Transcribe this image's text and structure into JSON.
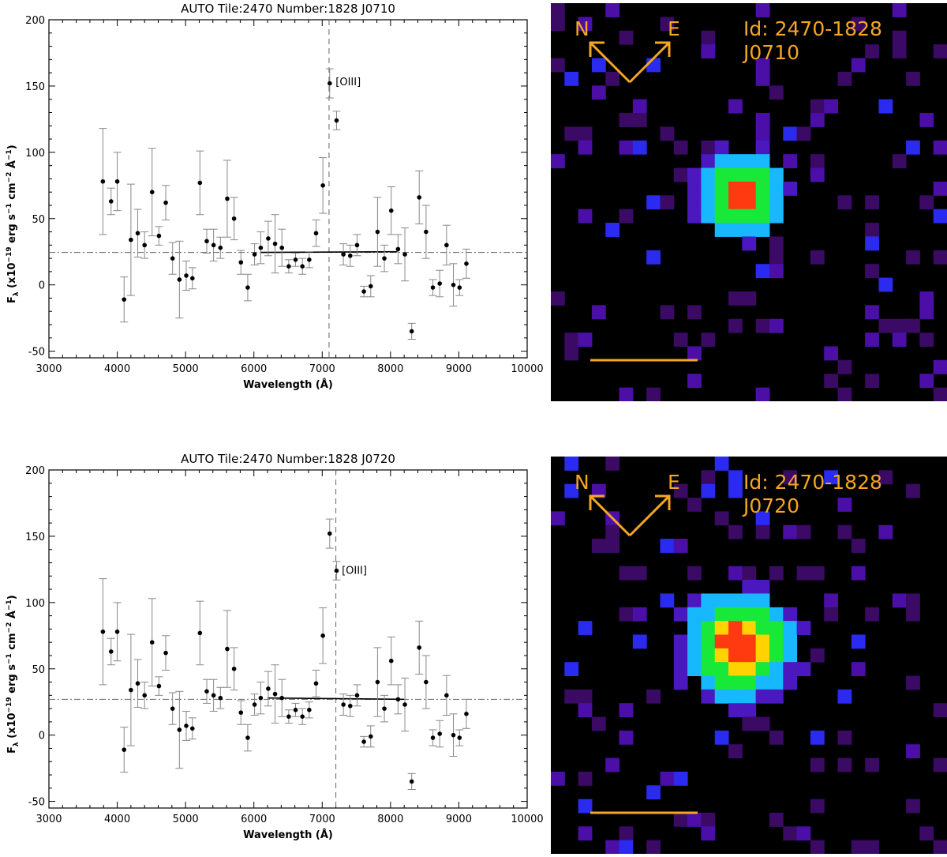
{
  "chart_data": [
    {
      "type": "scatter",
      "title": "AUTO Tile:2470 Number:1828 J0710",
      "xlabel": "Wavelength (Å)",
      "ylabel_main": "F",
      "ylabel_sub": "λ",
      "ylabel_rest": " (x10",
      "ylabel_exp1": "−19",
      "ylabel_mid": " erg s",
      "ylabel_exp2": "−1",
      "ylabel_mid2": " cm",
      "ylabel_exp3": "−2",
      "ylabel_mid3": " Å",
      "ylabel_exp4": "−1",
      "ylabel_end": ")",
      "xlim": [
        3000,
        10000
      ],
      "ylim": [
        -55,
        200
      ],
      "xticks": [
        3000,
        4000,
        5000,
        6000,
        7000,
        8000,
        9000,
        10000
      ],
      "yticks": [
        -50,
        0,
        50,
        100,
        150,
        200
      ],
      "continuum_level": 24.5,
      "vline_x": 7100,
      "fit_line": {
        "x": [
          6100,
          8100
        ],
        "y": [
          24.5,
          25
        ]
      },
      "annotation": {
        "text": "[OIII]",
        "x": 7150,
        "y": 153
      },
      "points": [
        {
          "x": 3790,
          "y": 78,
          "err": 40
        },
        {
          "x": 3910,
          "y": 63,
          "err": 10
        },
        {
          "x": 4000,
          "y": 78,
          "err": 22
        },
        {
          "x": 4100,
          "y": -11,
          "err": 17
        },
        {
          "x": 4200,
          "y": 34,
          "err": 42
        },
        {
          "x": 4300,
          "y": 39,
          "err": 18
        },
        {
          "x": 4400,
          "y": 30,
          "err": 10
        },
        {
          "x": 4510,
          "y": 70,
          "err": 33
        },
        {
          "x": 4610,
          "y": 37,
          "err": 7
        },
        {
          "x": 4710,
          "y": 62,
          "err": 13
        },
        {
          "x": 4810,
          "y": 20,
          "err": 12
        },
        {
          "x": 4910,
          "y": 4,
          "err": 29
        },
        {
          "x": 5010,
          "y": 7,
          "err": 11
        },
        {
          "x": 5100,
          "y": 5,
          "err": 8
        },
        {
          "x": 5210,
          "y": 77,
          "err": 24
        },
        {
          "x": 5310,
          "y": 33,
          "err": 9
        },
        {
          "x": 5410,
          "y": 30,
          "err": 12
        },
        {
          "x": 5510,
          "y": 28,
          "err": 8
        },
        {
          "x": 5610,
          "y": 65,
          "err": 29
        },
        {
          "x": 5710,
          "y": 50,
          "err": 16
        },
        {
          "x": 5810,
          "y": 17,
          "err": 9
        },
        {
          "x": 5910,
          "y": -2,
          "err": 10
        },
        {
          "x": 6010,
          "y": 23,
          "err": 8
        },
        {
          "x": 6100,
          "y": 28,
          "err": 12
        },
        {
          "x": 6210,
          "y": 35,
          "err": 13
        },
        {
          "x": 6310,
          "y": 31,
          "err": 22
        },
        {
          "x": 6410,
          "y": 28,
          "err": 14
        },
        {
          "x": 6510,
          "y": 14,
          "err": 5
        },
        {
          "x": 6610,
          "y": 19,
          "err": 5
        },
        {
          "x": 6710,
          "y": 14,
          "err": 6
        },
        {
          "x": 6810,
          "y": 19,
          "err": 6
        },
        {
          "x": 6910,
          "y": 39,
          "err": 10
        },
        {
          "x": 7010,
          "y": 75,
          "err": 21
        },
        {
          "x": 7110,
          "y": 152,
          "err": 11
        },
        {
          "x": 7210,
          "y": 124,
          "err": 7
        },
        {
          "x": 7310,
          "y": 23,
          "err": 8
        },
        {
          "x": 7410,
          "y": 22,
          "err": 8
        },
        {
          "x": 7510,
          "y": 30,
          "err": 8
        },
        {
          "x": 7610,
          "y": -5,
          "err": 4
        },
        {
          "x": 7710,
          "y": -1,
          "err": 8
        },
        {
          "x": 7810,
          "y": 40,
          "err": 26
        },
        {
          "x": 7910,
          "y": 20,
          "err": 10
        },
        {
          "x": 8010,
          "y": 56,
          "err": 18
        },
        {
          "x": 8110,
          "y": 27,
          "err": 11
        },
        {
          "x": 8210,
          "y": 23,
          "err": 20
        },
        {
          "x": 8310,
          "y": -35,
          "err": 6
        },
        {
          "x": 8420,
          "y": 66,
          "err": 20
        },
        {
          "x": 8520,
          "y": 40,
          "err": 20
        },
        {
          "x": 8620,
          "y": -2,
          "err": 6
        },
        {
          "x": 8720,
          "y": 1,
          "err": 10
        },
        {
          "x": 8820,
          "y": 30,
          "err": 15
        },
        {
          "x": 8920,
          "y": 0,
          "err": 16
        },
        {
          "x": 9010,
          "y": -2,
          "err": 6
        },
        {
          "x": 9110,
          "y": 16,
          "err": 11
        }
      ]
    },
    {
      "type": "scatter",
      "title": "AUTO Tile:2470 Number:1828 J0720",
      "xlabel": "Wavelength (Å)",
      "ylabel_main": "F",
      "ylabel_sub": "λ",
      "ylabel_rest": " (x10",
      "ylabel_exp1": "−19",
      "ylabel_mid": " erg s",
      "ylabel_exp2": "−1",
      "ylabel_mid2": " cm",
      "ylabel_exp3": "−2",
      "ylabel_mid3": " Å",
      "ylabel_exp4": "−1",
      "ylabel_end": ")",
      "xlim": [
        3000,
        10000
      ],
      "ylim": [
        -55,
        200
      ],
      "xticks": [
        3000,
        4000,
        5000,
        6000,
        7000,
        8000,
        9000,
        10000
      ],
      "yticks": [
        -50,
        0,
        50,
        100,
        150,
        200
      ],
      "continuum_level": 27,
      "vline_x": 7200,
      "fit_line": {
        "x": [
          6200,
          8200
        ],
        "y": [
          28,
          27
        ]
      },
      "annotation": {
        "text": "[OIII]",
        "x": 7240,
        "y": 124
      },
      "points": [
        {
          "x": 3790,
          "y": 78,
          "err": 40
        },
        {
          "x": 3910,
          "y": 63,
          "err": 10
        },
        {
          "x": 4000,
          "y": 78,
          "err": 22
        },
        {
          "x": 4100,
          "y": -11,
          "err": 17
        },
        {
          "x": 4200,
          "y": 34,
          "err": 42
        },
        {
          "x": 4300,
          "y": 39,
          "err": 18
        },
        {
          "x": 4400,
          "y": 30,
          "err": 10
        },
        {
          "x": 4510,
          "y": 70,
          "err": 33
        },
        {
          "x": 4610,
          "y": 37,
          "err": 7
        },
        {
          "x": 4710,
          "y": 62,
          "err": 13
        },
        {
          "x": 4810,
          "y": 20,
          "err": 12
        },
        {
          "x": 4910,
          "y": 4,
          "err": 29
        },
        {
          "x": 5010,
          "y": 7,
          "err": 11
        },
        {
          "x": 5100,
          "y": 5,
          "err": 8
        },
        {
          "x": 5210,
          "y": 77,
          "err": 24
        },
        {
          "x": 5310,
          "y": 33,
          "err": 9
        },
        {
          "x": 5410,
          "y": 30,
          "err": 12
        },
        {
          "x": 5510,
          "y": 28,
          "err": 8
        },
        {
          "x": 5610,
          "y": 65,
          "err": 29
        },
        {
          "x": 5710,
          "y": 50,
          "err": 16
        },
        {
          "x": 5810,
          "y": 17,
          "err": 9
        },
        {
          "x": 5910,
          "y": -2,
          "err": 10
        },
        {
          "x": 6010,
          "y": 23,
          "err": 8
        },
        {
          "x": 6100,
          "y": 28,
          "err": 12
        },
        {
          "x": 6210,
          "y": 35,
          "err": 13
        },
        {
          "x": 6310,
          "y": 31,
          "err": 22
        },
        {
          "x": 6410,
          "y": 28,
          "err": 14
        },
        {
          "x": 6510,
          "y": 14,
          "err": 5
        },
        {
          "x": 6610,
          "y": 19,
          "err": 5
        },
        {
          "x": 6710,
          "y": 14,
          "err": 6
        },
        {
          "x": 6810,
          "y": 19,
          "err": 6
        },
        {
          "x": 6910,
          "y": 39,
          "err": 10
        },
        {
          "x": 7010,
          "y": 75,
          "err": 21
        },
        {
          "x": 7110,
          "y": 152,
          "err": 11
        },
        {
          "x": 7210,
          "y": 124,
          "err": 7
        },
        {
          "x": 7310,
          "y": 23,
          "err": 8
        },
        {
          "x": 7410,
          "y": 22,
          "err": 8
        },
        {
          "x": 7510,
          "y": 30,
          "err": 8
        },
        {
          "x": 7610,
          "y": -5,
          "err": 4
        },
        {
          "x": 7710,
          "y": -1,
          "err": 8
        },
        {
          "x": 7810,
          "y": 40,
          "err": 26
        },
        {
          "x": 7910,
          "y": 20,
          "err": 10
        },
        {
          "x": 8010,
          "y": 56,
          "err": 18
        },
        {
          "x": 8110,
          "y": 27,
          "err": 11
        },
        {
          "x": 8210,
          "y": 23,
          "err": 20
        },
        {
          "x": 8310,
          "y": -35,
          "err": 6
        },
        {
          "x": 8420,
          "y": 66,
          "err": 20
        },
        {
          "x": 8520,
          "y": 40,
          "err": 20
        },
        {
          "x": 8620,
          "y": -2,
          "err": 6
        },
        {
          "x": 8720,
          "y": 1,
          "err": 10
        },
        {
          "x": 8820,
          "y": 30,
          "err": 15
        },
        {
          "x": 8920,
          "y": 0,
          "err": 16
        },
        {
          "x": 9010,
          "y": -2,
          "err": 6
        },
        {
          "x": 9110,
          "y": 16,
          "err": 11
        }
      ]
    }
  ],
  "images": [
    {
      "compass_n": "N",
      "compass_e": "E",
      "id_line1": "Id: 2470-1828",
      "id_line2": "J0710",
      "label_color": "#f5a623"
    },
    {
      "compass_n": "N",
      "compass_e": "E",
      "id_line1": "Id: 2470-1828",
      "id_line2": "J0720",
      "label_color": "#f5a623"
    }
  ]
}
